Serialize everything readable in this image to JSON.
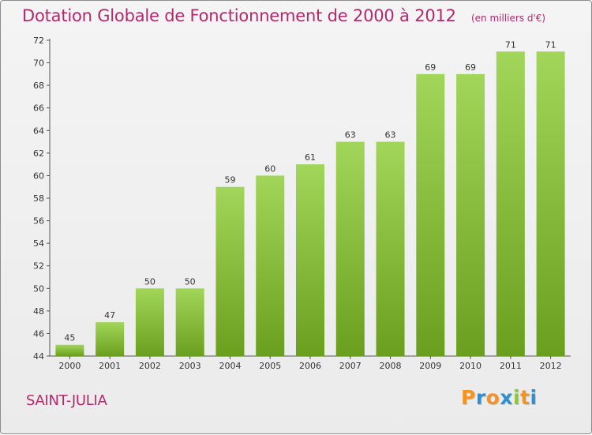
{
  "chart_data": {
    "type": "bar",
    "title": "Dotation Globale de Fonctionnement de 2000 à 2012",
    "unit_note": "(en milliers d'€)",
    "categories": [
      "2000",
      "2001",
      "2002",
      "2003",
      "2004",
      "2005",
      "2006",
      "2007",
      "2008",
      "2009",
      "2010",
      "2011",
      "2012"
    ],
    "values": [
      45,
      47,
      50,
      50,
      59,
      60,
      61,
      63,
      63,
      69,
      69,
      71,
      71
    ],
    "data_labels": [
      "45",
      "47",
      "50",
      "50",
      "59",
      "60",
      "61",
      "63",
      "63",
      "69",
      "69",
      "71",
      "71"
    ],
    "y_ticks": [
      44,
      46,
      48,
      50,
      52,
      54,
      56,
      58,
      60,
      62,
      64,
      66,
      68,
      70,
      72
    ],
    "ylim": [
      44,
      72
    ],
    "xlabel": "",
    "ylabel": "",
    "grid": false,
    "bar_color_top": "#a2d65a",
    "bar_color_bottom": "#6a9f1e"
  },
  "footer": {
    "commune": "SAINT-JULIA",
    "logo_letters": [
      "P",
      "r",
      "o",
      "x",
      "i",
      "t",
      "i"
    ],
    "logo_colors": [
      "#f39323",
      "#2f8fd0",
      "#f39323",
      "#2f8fd0",
      "#8cc63f",
      "#f39323",
      "#2f8fd0"
    ]
  },
  "colors": {
    "title": "#b22a6c",
    "axis": "#555555"
  }
}
